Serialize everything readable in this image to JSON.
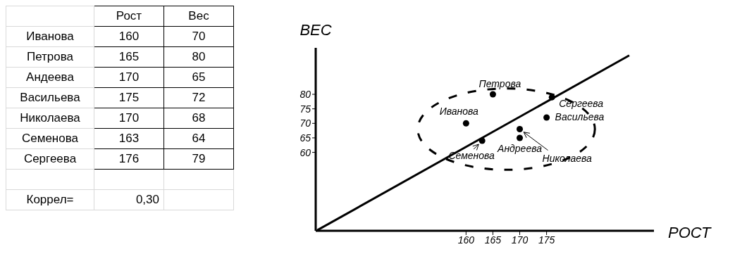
{
  "chart_data": [
    {
      "type": "other",
      "categories": [
        "Иванова",
        "Петрова",
        "Андеева",
        "Васильева",
        "Николаева",
        "Семенова",
        "Сергеева"
      ],
      "series": [
        {
          "name": "Рост",
          "values": [
            160,
            165,
            170,
            175,
            170,
            163,
            176
          ]
        },
        {
          "name": "Вес",
          "values": [
            70,
            80,
            65,
            72,
            68,
            64,
            79
          ]
        }
      ],
      "data_labels": true,
      "annotations": [
        "Коррел=",
        "0,30"
      ]
    },
    {
      "type": "scatter",
      "xlabel": "РОСТ",
      "ylabel": "ВЕС",
      "marker": "circle",
      "grid": false,
      "legend": false,
      "xlim": [
        132,
        195
      ],
      "ylim": [
        33,
        96
      ],
      "xticks": [
        160,
        165,
        170,
        175
      ],
      "yticks": [
        60,
        65,
        70,
        75,
        80
      ],
      "series": [
        {
          "color": "#000000",
          "x": [
            160,
            165,
            170,
            175,
            170,
            163,
            176
          ],
          "values": [
            70,
            80,
            65,
            72,
            68,
            64,
            79
          ]
        },
        {
          "type": "line",
          "marker": "none",
          "color": "#000000",
          "x": [
            132.3,
            190.4
          ],
          "values": [
            33.2,
            93.4
          ]
        }
      ],
      "annotations": [
        {
          "text": "Иванова",
          "x": 160,
          "y": 70
        },
        {
          "text": "Петрова",
          "x": 165,
          "y": 80
        },
        {
          "text": "Андреева",
          "x": 170,
          "y": 65
        },
        {
          "text": "Васильева",
          "x": 175,
          "y": 72
        },
        {
          "text": "Николаева",
          "x": 170,
          "y": 68
        },
        {
          "text": "Семенова",
          "x": 163,
          "y": 64
        },
        {
          "text": "Сергеева",
          "x": 176,
          "y": 79
        }
      ]
    }
  ]
}
